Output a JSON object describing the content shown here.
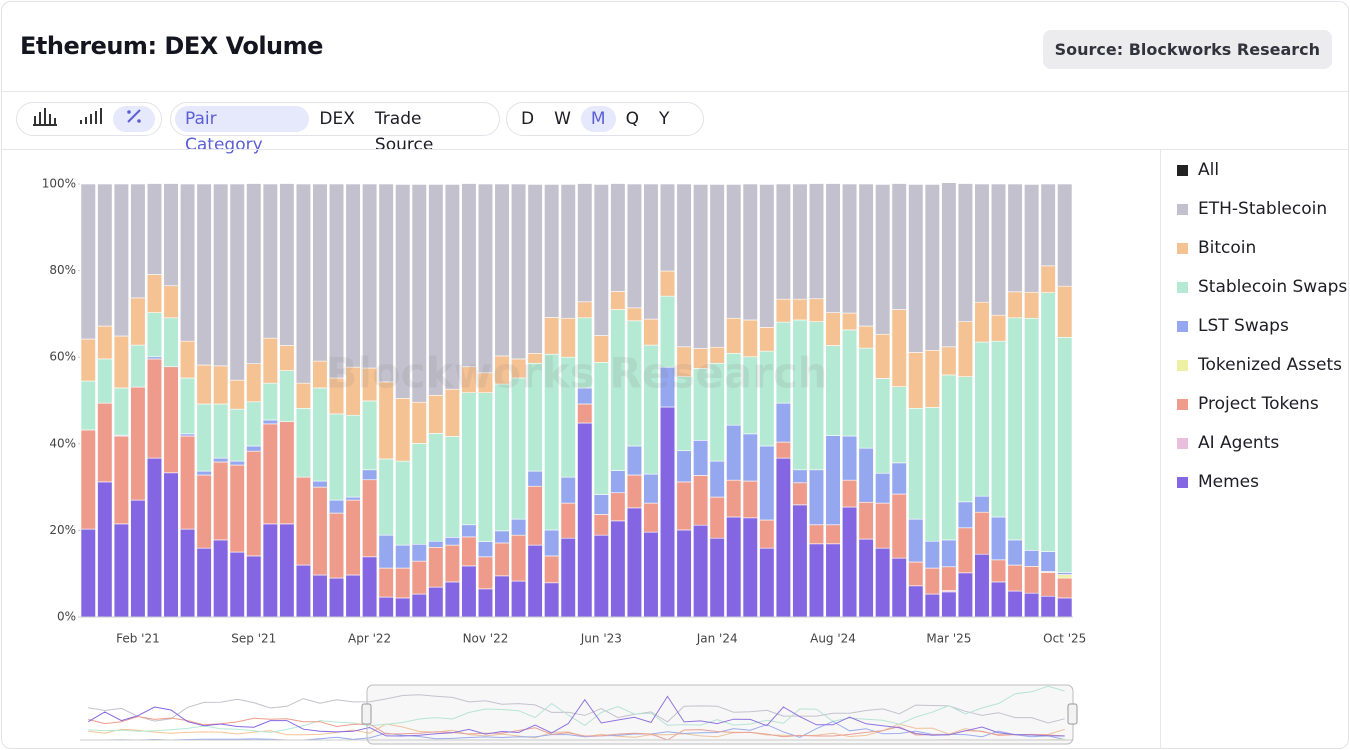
{
  "chart_data": {
    "type": "bar",
    "stacked": true,
    "title": "Ethereum: DEX Volume",
    "source": "Source: Blockworks Research",
    "watermark": "Blockworks Research",
    "toolbar": {
      "groupings": [
        "Pair Category",
        "DEX",
        "Trade Source"
      ],
      "active_grouping": 0,
      "intervals": [
        "D",
        "W",
        "M",
        "Q",
        "Y"
      ],
      "active_interval": 2
    },
    "legend_all": "All",
    "legend_all_color": "#222222",
    "categories": [
      null,
      null,
      null,
      "Feb '21",
      null,
      null,
      null,
      null,
      null,
      null,
      "Sep '21",
      null,
      null,
      null,
      null,
      null,
      null,
      "Apr '22",
      null,
      null,
      null,
      null,
      null,
      null,
      "Nov '22",
      null,
      null,
      null,
      null,
      null,
      null,
      "Jun '23",
      null,
      null,
      null,
      null,
      null,
      null,
      "Jan '24",
      null,
      null,
      null,
      null,
      null,
      null,
      "Aug '24",
      null,
      null,
      null,
      null,
      null,
      null,
      "Mar '25",
      null,
      null,
      null,
      null,
      null,
      null,
      "Oct '25"
    ],
    "ylim": [
      0,
      100
    ],
    "yticks": [
      {
        "value": 0,
        "label": "0%"
      },
      {
        "value": 20,
        "label": "20%"
      },
      {
        "value": 40,
        "label": "40%"
      },
      {
        "value": 60,
        "label": "60%"
      },
      {
        "value": 80,
        "label": "80%"
      },
      {
        "value": 100,
        "label": "100%"
      }
    ],
    "series": [
      {
        "name": "ETH-Stablecoin",
        "color": "#c3c1cd",
        "values": [
          35.8,
          32.8,
          35.1,
          26.3,
          21,
          23.6,
          36.3,
          41.8,
          42,
          45.3,
          41.6,
          35.6,
          37.4,
          46,
          40.9,
          44.8,
          42.3,
          42.5,
          45.7,
          49.4,
          50.3,
          48.7,
          47.3,
          42.3,
          43.6,
          39.7,
          40.4,
          39,
          30.7,
          30.9,
          27.3,
          34.9,
          24.9,
          28.6,
          31.2,
          20.1,
          37.6,
          37.9,
          37.6,
          30.9,
          31.4,
          33,
          26.6,
          26.6,
          26.6,
          29.8,
          29.8,
          32.8,
          34.6,
          29.1,
          38.8,
          38.3,
          37.9,
          31.9,
          27.3,
          30.3,
          24.9,
          24.9,
          18.9,
          23.6
        ]
      },
      {
        "name": "Bitcoin",
        "color": "#f5c293",
        "values": [
          9.7,
          7.6,
          12,
          10.9,
          8.8,
          7.4,
          8.5,
          9,
          8.8,
          6.7,
          8.8,
          10.4,
          5.8,
          5.8,
          6.2,
          8.3,
          11.1,
          7.6,
          17.8,
          14.5,
          9.5,
          8.8,
          10.9,
          6,
          4.6,
          6.5,
          4.4,
          2.3,
          8.5,
          9,
          3.7,
          6.2,
          4.2,
          3,
          6,
          5.8,
          6.9,
          4.6,
          3.7,
          8.1,
          8.5,
          5.5,
          5.3,
          4.8,
          5.3,
          7.6,
          3.9,
          5.1,
          10.2,
          17.8,
          12.9,
          13.2,
          6.5,
          12.7,
          9.2,
          6,
          6,
          6,
          6.2,
          11.8
        ]
      },
      {
        "name": "Stablecoin Swaps",
        "color": "#b4e9d3",
        "values": [
          11.3,
          10.2,
          10.9,
          9.7,
          10.2,
          11.3,
          12.9,
          15.5,
          12.5,
          12,
          10.2,
          8.5,
          11.8,
          15.9,
          21.5,
          19.9,
          18.9,
          15.9,
          17.6,
          19.4,
          23.3,
          24.9,
          23.3,
          30.5,
          34.4,
          33.9,
          32.6,
          24.9,
          40.6,
          27.7,
          16.2,
          30.5,
          37.2,
          28.9,
          29.8,
          16.4,
          17.1,
          16.6,
          22.6,
          16.6,
          17.8,
          21.9,
          18.7,
          34.6,
          34.2,
          20.8,
          24.5,
          23.1,
          21.9,
          17.6,
          25.6,
          30.9,
          38.1,
          28.9,
          35.6,
          40.6,
          51.3,
          53.6,
          59.8,
          54.3
        ]
      },
      {
        "name": "LST Swaps",
        "color": "#95a8ef",
        "values": [
          0,
          0,
          0.2,
          0,
          0.5,
          0,
          0.5,
          0.9,
          0.9,
          0.9,
          1.2,
          0.9,
          0,
          0,
          1.4,
          3,
          0.7,
          2.3,
          7.6,
          5.3,
          3.9,
          1.4,
          1.8,
          2.8,
          3.5,
          2.8,
          3.7,
          3.5,
          6,
          6,
          3.7,
          4.6,
          5.1,
          6.7,
          6.7,
          9.2,
          7.2,
          8.1,
          8.3,
          12.7,
          10.9,
          17.1,
          9,
          3,
          12.7,
          20.6,
          10.2,
          12.5,
          6.9,
          7.2,
          9.9,
          6.2,
          6.2,
          6,
          3.7,
          9.9,
          5.8,
          3.7,
          4.6,
          0.5
        ]
      },
      {
        "name": "Tokenized Assets",
        "color": "#eef0a6",
        "values": [
          0,
          0,
          0,
          0,
          0,
          0,
          0,
          0,
          0,
          0,
          0,
          0,
          0,
          0,
          0,
          0,
          0,
          0,
          0,
          0,
          0,
          0,
          0,
          0,
          0,
          0,
          0,
          0,
          0,
          0,
          0,
          0,
          0,
          0,
          0,
          0,
          0,
          0,
          0,
          0,
          0,
          0,
          0,
          0,
          0,
          0,
          0,
          0,
          0,
          0,
          0,
          0,
          0,
          0,
          0,
          0,
          0,
          0,
          0.2,
          0.8
        ]
      },
      {
        "name": "Project Tokens",
        "color": "#ef9b8b",
        "values": [
          22.9,
          18.2,
          20.3,
          26.1,
          22.9,
          24.5,
          21.5,
          16.9,
          18,
          20.1,
          24.2,
          23.1,
          23.6,
          20.3,
          20.3,
          15,
          17.3,
          17.8,
          6.7,
          6.9,
          7.6,
          9.2,
          8.5,
          6.7,
          7.4,
          7.6,
          10.6,
          13.6,
          6.2,
          8.1,
          4.4,
          4.8,
          6.5,
          7.6,
          6.7,
          0,
          11.1,
          11.5,
          9.5,
          8.5,
          8.5,
          6.5,
          3.7,
          5.1,
          4.4,
          4.4,
          6.2,
          8.5,
          10.4,
          14.8,
          5.5,
          6,
          5.5,
          10.4,
          9.7,
          5.1,
          6,
          6.2,
          5.5,
          4.6
        ]
      },
      {
        "name": "AI Agents",
        "color": "#eabfdd",
        "values": [
          0,
          0,
          0,
          0,
          0,
          0,
          0,
          0,
          0,
          0,
          0,
          0,
          0,
          0,
          0,
          0,
          0,
          0,
          0,
          0,
          0,
          0,
          0,
          0,
          0,
          0,
          0,
          0,
          0,
          0,
          0,
          0,
          0,
          0,
          0,
          0,
          0,
          0,
          0,
          0,
          0,
          0,
          0,
          0,
          0,
          0,
          0,
          0,
          0,
          0,
          0,
          0,
          0.3,
          0,
          0,
          0,
          0,
          0,
          0,
          0
        ]
      },
      {
        "name": "Memes",
        "color": "#8466e3",
        "values": [
          20.3,
          31.2,
          21.5,
          27,
          36.7,
          33.3,
          20.3,
          15.9,
          17.8,
          15,
          14.1,
          21.5,
          21.5,
          12,
          9.7,
          9,
          9.7,
          13.9,
          4.6,
          4.4,
          5.3,
          6.9,
          8.1,
          11.8,
          6.5,
          9.5,
          8.3,
          16.6,
          7.9,
          18.2,
          44.8,
          18.9,
          22.2,
          25.2,
          19.6,
          48.5,
          20.1,
          21.2,
          18.2,
          23.1,
          22.9,
          15.9,
          36.7,
          25.9,
          16.9,
          16.9,
          25.4,
          18,
          15.9,
          13.6,
          7.2,
          5.3,
          5.8,
          10.2,
          14.5,
          8.1,
          6,
          5.5,
          4.8,
          4.4
        ]
      }
    ]
  }
}
